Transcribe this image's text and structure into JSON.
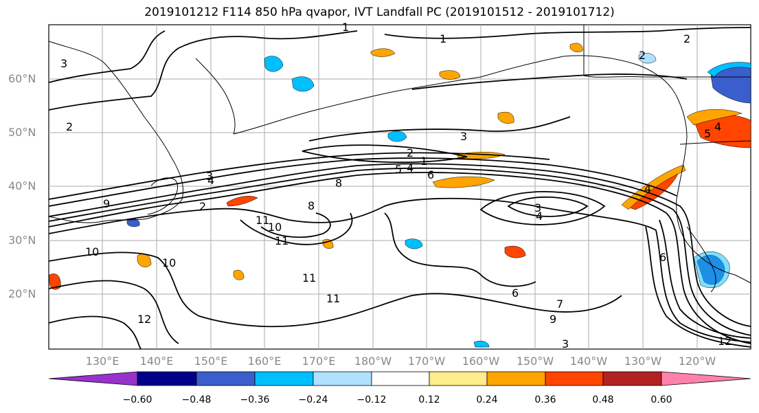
{
  "title": "2019101212 F114 850 hPa qvapor, IVT Landfall PC (2019101512 - 2019101712)",
  "lat_labels": [
    "60°N",
    "50°N",
    "40°N",
    "30°N",
    "20°N"
  ],
  "lon_labels": [
    "130°E",
    "140°E",
    "150°E",
    "160°E",
    "170°E",
    "180°W",
    "170°W",
    "160°W",
    "150°W",
    "140°W",
    "130°W",
    "120°W"
  ],
  "colorbar": {
    "colors": [
      "#9932cc",
      "#00008b",
      "#3a5fcd",
      "#00bfff",
      "#b0e2ff",
      "#ffffff",
      "#ffec8b",
      "#ffa500",
      "#ff4500",
      "#b22222",
      "#ff82ab"
    ],
    "ticks": [
      "−0.60",
      "−0.48",
      "−0.36",
      "−0.24",
      "−0.12",
      "0.12",
      "0.24",
      "0.36",
      "0.48",
      "0.60"
    ]
  },
  "contour_labels": [
    "1",
    "1",
    "2",
    "3",
    "2",
    "3",
    "2",
    "1",
    "5",
    "4",
    "6",
    "8",
    "3",
    "4",
    "4",
    "5",
    "4",
    "3",
    "2",
    "8",
    "9",
    "10",
    "11",
    "11",
    "10",
    "10",
    "11",
    "12",
    "11",
    "6",
    "7",
    "9",
    "4",
    "6",
    "12",
    "3",
    "2"
  ]
}
